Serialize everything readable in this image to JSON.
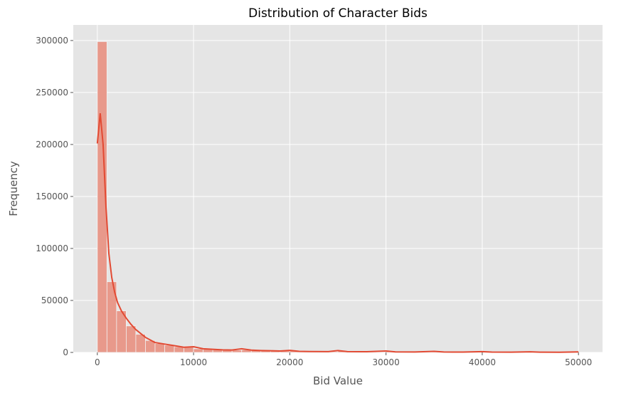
{
  "chart_data": {
    "type": "bar",
    "title": "Distribution of Character Bids",
    "xlabel": "Bid Value",
    "ylabel": "Frequency",
    "xlim": [
      -2500,
      52500
    ],
    "ylim": [
      0,
      315000
    ],
    "xticks": [
      0,
      10000,
      20000,
      30000,
      40000,
      50000
    ],
    "yticks": [
      0,
      50000,
      100000,
      150000,
      200000,
      250000,
      300000
    ],
    "grid": true,
    "bin_width": 1000,
    "bins": {
      "x": [
        0,
        1000,
        2000,
        3000,
        4000,
        5000,
        6000,
        7000,
        8000,
        9000,
        10000,
        11000,
        12000,
        13000,
        14000,
        15000,
        16000,
        17000,
        18000,
        19000,
        20000,
        21000,
        22000,
        23000,
        24000,
        25000,
        26000,
        27000,
        28000,
        29000,
        30000,
        31000,
        32000,
        33000,
        34000,
        35000,
        36000,
        37000,
        38000,
        39000,
        40000,
        41000,
        42000,
        43000,
        44000,
        45000,
        46000,
        47000,
        48000,
        49000
      ],
      "values": [
        299000,
        68000,
        40000,
        25500,
        17500,
        11500,
        8500,
        7000,
        5500,
        6000,
        3500,
        3000,
        2800,
        2500,
        2300,
        2500,
        2000,
        1700,
        1600,
        1400,
        1800,
        1100,
        1000,
        900,
        800,
        1400,
        800,
        700,
        600,
        500,
        1200,
        500,
        500,
        400,
        400,
        900,
        400,
        350,
        300,
        300,
        700,
        300,
        300,
        250,
        250,
        500,
        250,
        250,
        250,
        700
      ]
    },
    "kde": {
      "x": [
        0,
        300,
        600,
        900,
        1200,
        1500,
        1800,
        2100,
        2500,
        3000,
        3500,
        4000,
        5000,
        6000,
        7000,
        8000,
        9000,
        10000,
        11000,
        12000,
        13000,
        14000,
        15000,
        16000,
        17000,
        18000,
        19000,
        20000,
        21000,
        22000,
        24000,
        25000,
        26000,
        28000,
        30000,
        31000,
        33000,
        35000,
        36000,
        38000,
        40000,
        41000,
        43000,
        45000,
        46000,
        48000,
        50000
      ],
      "y": [
        201000,
        230000,
        200000,
        140000,
        95000,
        72000,
        58000,
        48000,
        40000,
        33000,
        27000,
        22000,
        14500,
        9500,
        8000,
        6500,
        5000,
        5500,
        3500,
        3000,
        2500,
        2300,
        3500,
        2200,
        1800,
        1600,
        1400,
        2000,
        1000,
        900,
        800,
        1800,
        800,
        700,
        1400,
        500,
        400,
        1000,
        400,
        300,
        800,
        300,
        250,
        600,
        250,
        200,
        500
      ]
    },
    "colors": {
      "background": "#e5e5e5",
      "grid": "#ffffff",
      "bar_fill": "#e8998b",
      "bar_edge": "#f2f2f2",
      "kde_line": "#e24a33"
    }
  }
}
